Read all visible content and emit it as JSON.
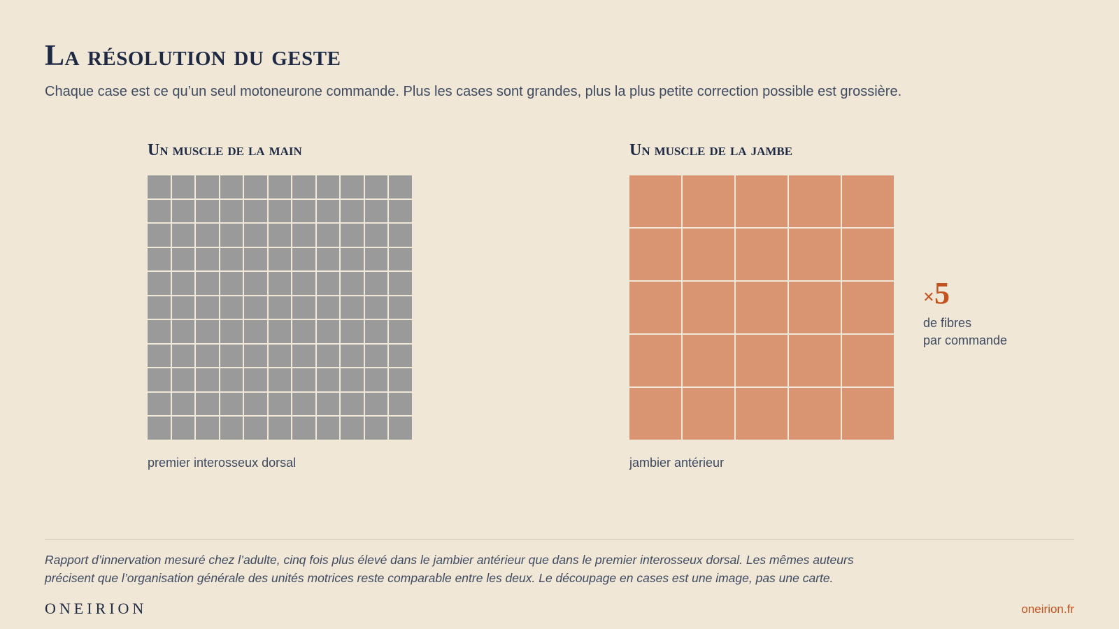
{
  "header": {
    "title": "La résolution du geste",
    "subtitle": "Chaque case est ce qu’un seul motoneurone commande. Plus les cases sont grandes, plus la plus petite correction possible est grossière."
  },
  "panels": [
    {
      "title": "Un muscle de la main",
      "caption": "premier interosseux dorsal",
      "grid_divisions": 11,
      "fill_color": "#9a9a9b"
    },
    {
      "title": "Un muscle de la jambe",
      "caption": "jambier antérieur",
      "grid_divisions": 5,
      "fill_color": "#d99571"
    }
  ],
  "ratio": {
    "sign": "×",
    "value": "5",
    "label_line1": "de fibres",
    "label_line2": "par commande"
  },
  "footer": {
    "note": "Rapport d’innervation mesuré chez l’adulte, cinq fois plus élevé dans le jambier antérieur que dans le premier interosseux dorsal. Les mêmes auteurs précisent que l’organisation générale des unités motrices reste comparable entre les deux. Le découpage en cases est une image, pas une carte.",
    "brand": "ONEIRION",
    "site": "oneirion.fr"
  },
  "colors": {
    "background": "#f0e7d6",
    "ink": "#1e2a44",
    "accent": "#c4521f"
  }
}
